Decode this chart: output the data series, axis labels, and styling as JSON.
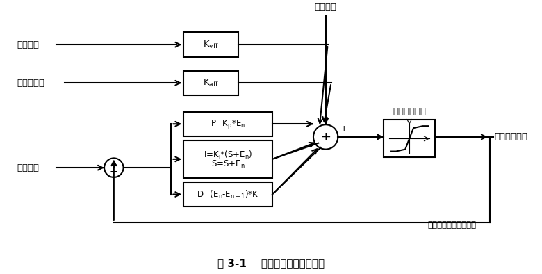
{
  "title": "图 3-1    数字伺服滤波器原理图",
  "background_color": "#ffffff",
  "labels": {
    "target_speed": "目标速度",
    "target_accel": "目标加速度",
    "target_pos": "目标位置",
    "static_comp": "静差补偿",
    "output_sat": "输出饱和控制",
    "motor_out": "电机控制输出",
    "encoder_feedback": "来自编码器的实际位置"
  }
}
